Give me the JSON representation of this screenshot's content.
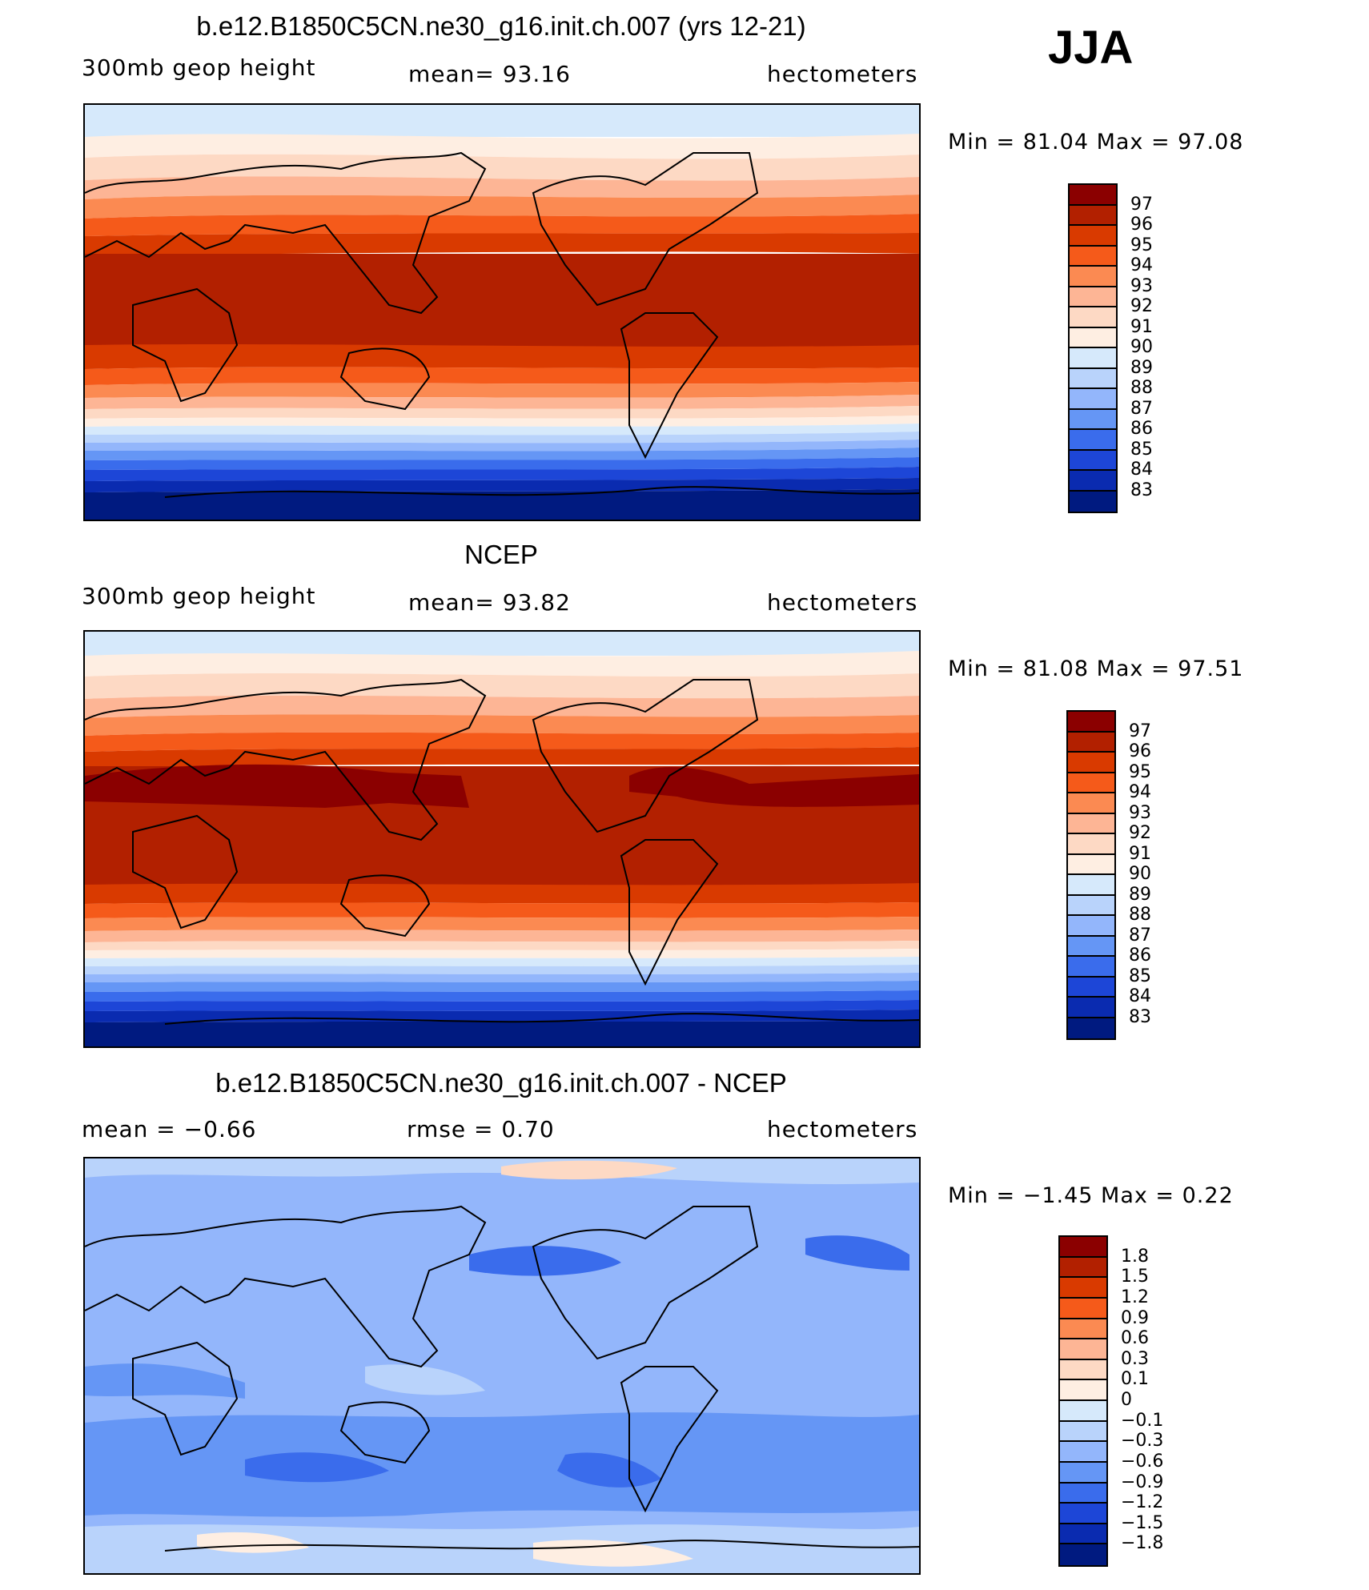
{
  "season": "JJA",
  "panels": [
    {
      "title": "b.e12.B1850C5CN.ne30_g16.init.ch.007 (yrs 12-21)",
      "left_label": "300mb geop height",
      "mid_label": "mean=   93.16",
      "right_label": "hectometers",
      "min_max": "Min =    81.04 Max =    97.08"
    },
    {
      "title": "NCEP",
      "left_label": "300mb geop height",
      "mid_label": "mean=   93.82",
      "right_label": "hectometers",
      "min_max": "Min =    81.08 Max =    97.51"
    },
    {
      "title": "b.e12.B1850C5CN.ne30_g16.init.ch.007 - NCEP",
      "left_label": "mean =    −0.66",
      "mid_label": "rmse =     0.70",
      "right_label": "hectometers",
      "min_max": "Min =   −1.45 Max =     0.22"
    }
  ],
  "colorbars": [
    {
      "labels": [
        "97",
        "96",
        "95",
        "94",
        "93",
        "92",
        "91",
        "90",
        "89",
        "88",
        "87",
        "86",
        "85",
        "84",
        "83"
      ]
    },
    {
      "labels": [
        "97",
        "96",
        "95",
        "94",
        "93",
        "92",
        "91",
        "90",
        "89",
        "88",
        "87",
        "86",
        "85",
        "84",
        "83"
      ]
    },
    {
      "labels": [
        "1.8",
        "1.5",
        "1.2",
        "0.9",
        "0.6",
        "0.3",
        "0.1",
        "0",
        "−0.1",
        "−0.3",
        "−0.6",
        "−0.9",
        "−1.2",
        "−1.5",
        "−1.8"
      ]
    }
  ],
  "colors": [
    "#8b0000",
    "#b22000",
    "#d93a00",
    "#f55a1a",
    "#fb8a52",
    "#fdb595",
    "#fdd9c4",
    "#feeee2",
    "#d6e9fb",
    "#b9d3fb",
    "#93b6fb",
    "#6596f5",
    "#3a6cec",
    "#1d46d7",
    "#0a2bb0",
    "#001a80"
  ],
  "ocean_note": ""
}
